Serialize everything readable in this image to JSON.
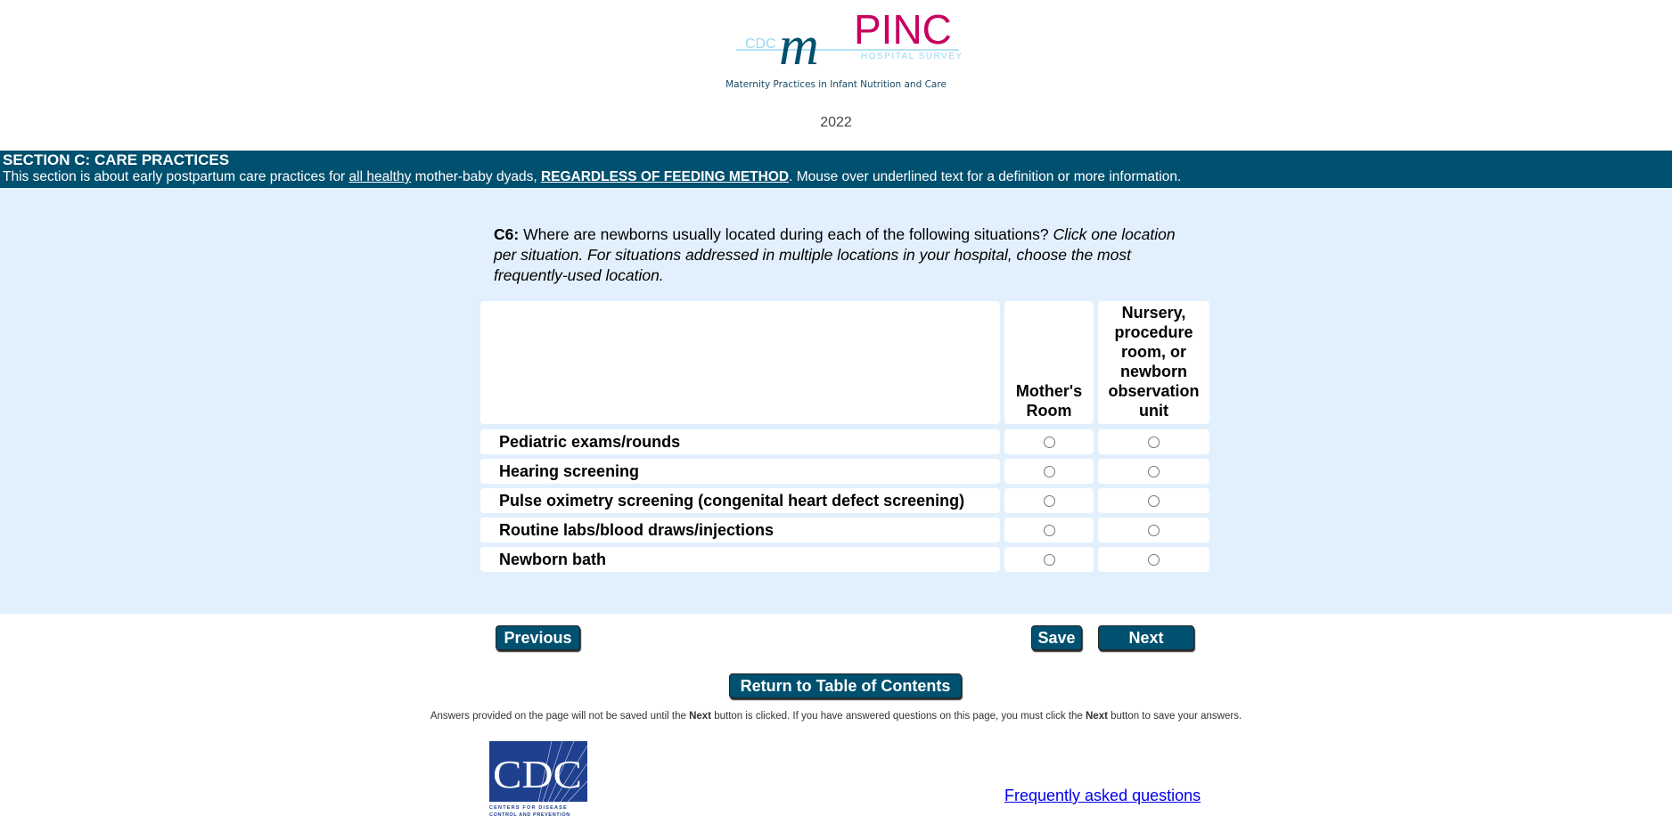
{
  "header": {
    "logo_text": "CDC mPINC HOSPITAL SURVEY",
    "tagline": "Maternity Practices in Infant Nutrition and Care",
    "year": "2022"
  },
  "section": {
    "title": "SECTION C: CARE PRACTICES",
    "desc_1": "This section is about early postpartum care practices for ",
    "desc_link1": "all healthy",
    "desc_2": " mother-baby dyads, ",
    "desc_link2": "REGARDLESS OF FEEDING METHOD",
    "desc_3": ". Mouse over underlined text for a definition or more information."
  },
  "question": {
    "number": "C6:",
    "text": " Where are newborns usually located during each of the following situations? ",
    "instruction": "Click one location per situation. For situations addressed in multiple locations in your hospital, choose the most frequently-used location."
  },
  "table": {
    "columns": [
      "Mother's Room",
      "Nursery, procedure room, or newborn observation unit"
    ],
    "rows": [
      "Pediatric exams/rounds",
      "Hearing screening",
      "Pulse oximetry screening (congenital heart defect screening)",
      "Routine labs/blood draws/injections",
      "Newborn bath"
    ]
  },
  "buttons": {
    "previous": "Previous",
    "save": "Save",
    "next": "Next",
    "toc": "Return to Table of Contents"
  },
  "note": {
    "p1": "Answers provided on the page will not be saved until the ",
    "b1": "Next",
    "p2": " button is clicked. If you have answered questions on this page, you must click the ",
    "b2": "Next",
    "p3": " button to save your answers."
  },
  "footer": {
    "cdc_logo_text": "CDC Centers for Disease Control and Prevention",
    "faq": "Frequently asked questions"
  },
  "colors": {
    "brand": "#00506f",
    "background": "#e2f0fd",
    "logo_pink": "#c8005f"
  }
}
